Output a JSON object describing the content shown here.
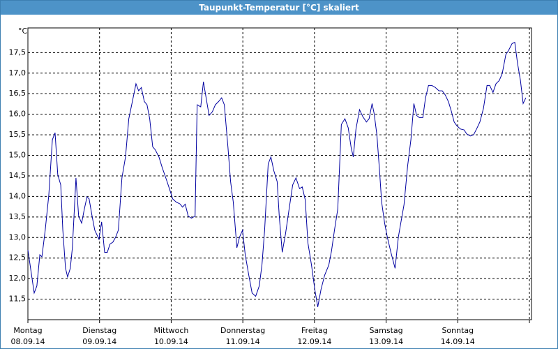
{
  "chart_data": {
    "type": "line",
    "title": "Taupunkt-Temperatur [°C] skaliert",
    "y_unit": "°C",
    "x": [
      0,
      0.9,
      2.1,
      3.0,
      4.0,
      4.7,
      5.8,
      7.0,
      8.2,
      9.1,
      10.0,
      11.0,
      11.7,
      12.6,
      13.3,
      14.2,
      14.9,
      16.1,
      17.0,
      18.0,
      18.9,
      19.8,
      20.5,
      21.5,
      22.4,
      23.8,
      24.7,
      25.7,
      26.6,
      27.5,
      28.5,
      29.4,
      30.3,
      31.5,
      32.7,
      33.8,
      35.0,
      36.2,
      37.1,
      38.0,
      39.0,
      39.9,
      40.8,
      41.8,
      42.7,
      43.9,
      45.0,
      46.2,
      47.4,
      48.5,
      49.7,
      50.9,
      51.8,
      52.7,
      53.7,
      54.8,
      56.0,
      56.7,
      57.9,
      58.8,
      59.7,
      60.7,
      61.8,
      62.8,
      63.9,
      64.9,
      65.8,
      67.0,
      67.9,
      68.8,
      70.0,
      70.9,
      71.9,
      72.8,
      74.0,
      75.1,
      76.3,
      77.5,
      78.4,
      79.3,
      80.5,
      81.4,
      82.4,
      83.5,
      84.2,
      85.2,
      86.3,
      87.5,
      88.7,
      89.8,
      91.0,
      91.9,
      92.9,
      93.8,
      95.0,
      96.1,
      97.1,
      98.2,
      99.4,
      100.8,
      101.7,
      102.7,
      103.8,
      105.0,
      106.2,
      107.3,
      108.3,
      109.0,
      109.9,
      111.1,
      112.2,
      113.4,
      114.3,
      115.3,
      116.0,
      116.9,
      117.8,
      118.5,
      119.5,
      120.4,
      121.6,
      123.0,
      124.1,
      125.1,
      126.0,
      127.2,
      128.3,
      129.3,
      130.2,
      131.1,
      132.3,
      133.2,
      134.2,
      135.3,
      136.5,
      137.7,
      138.8,
      139.8,
      140.9,
      141.9,
      142.8,
      143.7,
      144.9,
      146.1,
      147.0,
      148.2,
      149.3,
      150.3,
      151.4,
      152.6,
      153.8,
      154.7,
      155.8,
      156.8,
      157.9,
      158.9,
      160.1,
      161.0,
      162.2,
      163.1,
      164.0,
      165.0,
      165.9,
      166.8
    ],
    "series": [
      {
        "color": "#0000a0",
        "values": [
          12.7,
          12.25,
          11.65,
          11.82,
          12.58,
          12.53,
          13.18,
          14.03,
          15.38,
          15.55,
          14.53,
          14.28,
          13.18,
          12.25,
          12.04,
          12.25,
          12.75,
          14.45,
          13.52,
          13.35,
          13.69,
          13.99,
          13.94,
          13.52,
          13.18,
          12.96,
          13.38,
          12.64,
          12.64,
          12.84,
          12.89,
          13.01,
          13.18,
          14.45,
          14.96,
          15.89,
          16.31,
          16.74,
          16.57,
          16.65,
          16.31,
          16.23,
          15.89,
          15.21,
          15.13,
          14.96,
          14.7,
          14.45,
          14.19,
          13.94,
          13.86,
          13.82,
          13.74,
          13.81,
          13.52,
          13.47,
          13.52,
          16.23,
          16.18,
          16.79,
          16.4,
          15.97,
          16.06,
          16.23,
          16.31,
          16.4,
          16.23,
          15.21,
          14.36,
          13.86,
          12.75,
          13.01,
          13.18,
          12.58,
          12.08,
          11.65,
          11.57,
          11.82,
          12.33,
          13.18,
          14.79,
          14.96,
          14.62,
          14.36,
          13.52,
          12.64,
          13.09,
          13.69,
          14.28,
          14.45,
          14.19,
          14.23,
          13.92,
          12.87,
          12.33,
          11.74,
          11.31,
          11.74,
          12.08,
          12.33,
          12.67,
          13.18,
          13.69,
          15.75,
          15.89,
          15.67,
          15.18,
          14.96,
          15.64,
          16.11,
          15.94,
          15.81,
          15.89,
          16.26,
          16.01,
          15.5,
          14.62,
          13.86,
          13.35,
          13.01,
          12.64,
          12.25,
          13.01,
          13.43,
          13.8,
          14.74,
          15.38,
          16.26,
          15.97,
          15.92,
          15.92,
          16.4,
          16.7,
          16.7,
          16.65,
          16.57,
          16.57,
          16.47,
          16.3,
          16.06,
          15.81,
          15.72,
          15.64,
          15.62,
          15.52,
          15.47,
          15.5,
          15.64,
          15.81,
          16.14,
          16.7,
          16.7,
          16.53,
          16.74,
          16.82,
          16.99,
          17.45,
          17.55,
          17.72,
          17.75,
          17.25,
          16.82,
          16.26,
          16.4
        ]
      }
    ],
    "xlim": [
      0,
      168.7
    ],
    "xticks": [
      {
        "value": 0,
        "label": "Montag",
        "date": "08.09.14"
      },
      {
        "value": 24,
        "label": "Dienstag",
        "date": "09.09.14"
      },
      {
        "value": 48,
        "label": "Mittwoch",
        "date": "10.09.14"
      },
      {
        "value": 72,
        "label": "Donnerstag",
        "date": "11.09.14"
      },
      {
        "value": 96,
        "label": "Freitag",
        "date": "12.09.14"
      },
      {
        "value": 120,
        "label": "Samstag",
        "date": "13.09.14"
      },
      {
        "value": 144,
        "label": "Sonntag",
        "date": "14.09.14"
      },
      {
        "value": 168,
        "label": "",
        "date": ""
      }
    ],
    "ylim": [
      11.0,
      18.1
    ],
    "yticks": [
      {
        "value": 11.5,
        "label": "11,5"
      },
      {
        "value": 12.0,
        "label": "12,0"
      },
      {
        "value": 12.5,
        "label": "12,5"
      },
      {
        "value": 13.0,
        "label": "13,0"
      },
      {
        "value": 13.5,
        "label": "13,5"
      },
      {
        "value": 14.0,
        "label": "14,0"
      },
      {
        "value": 14.5,
        "label": "14,5"
      },
      {
        "value": 15.0,
        "label": "15,0"
      },
      {
        "value": 15.5,
        "label": "15,5"
      },
      {
        "value": 16.0,
        "label": "16,0"
      },
      {
        "value": 16.5,
        "label": "16,5"
      },
      {
        "value": 17.0,
        "label": "17,0"
      },
      {
        "value": 17.5,
        "label": "17,5"
      }
    ],
    "grid": true
  }
}
